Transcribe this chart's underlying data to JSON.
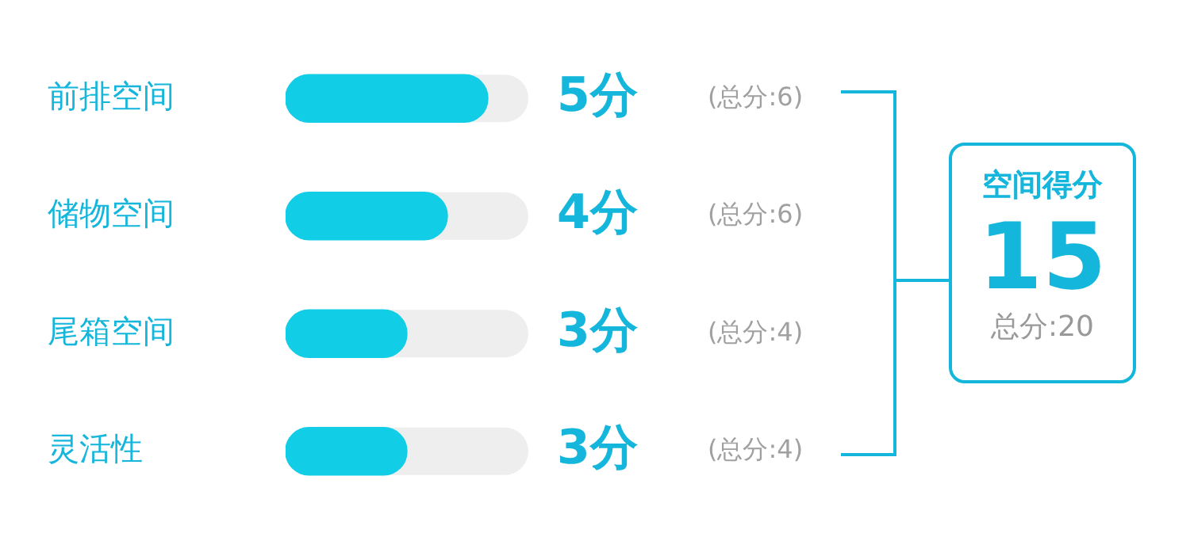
{
  "chart_data": {
    "type": "bar",
    "orientation": "horizontal",
    "categories": [
      "前排空间",
      "储物空间",
      "尾箱空间",
      "灵活性"
    ],
    "values": [
      5,
      4,
      3,
      3
    ],
    "value_labels": [
      "5分",
      "4分",
      "3分",
      "3分"
    ],
    "color": "#12cde6",
    "xlim": [
      0,
      6
    ],
    "tick_labels": "y",
    "grid": false,
    "legend": false,
    "annotations": [
      "(总分:6)",
      "(总分:6)",
      "(总分:4)",
      "(总分:4)",
      "空间得分",
      "15",
      "总分:20"
    ]
  }
}
